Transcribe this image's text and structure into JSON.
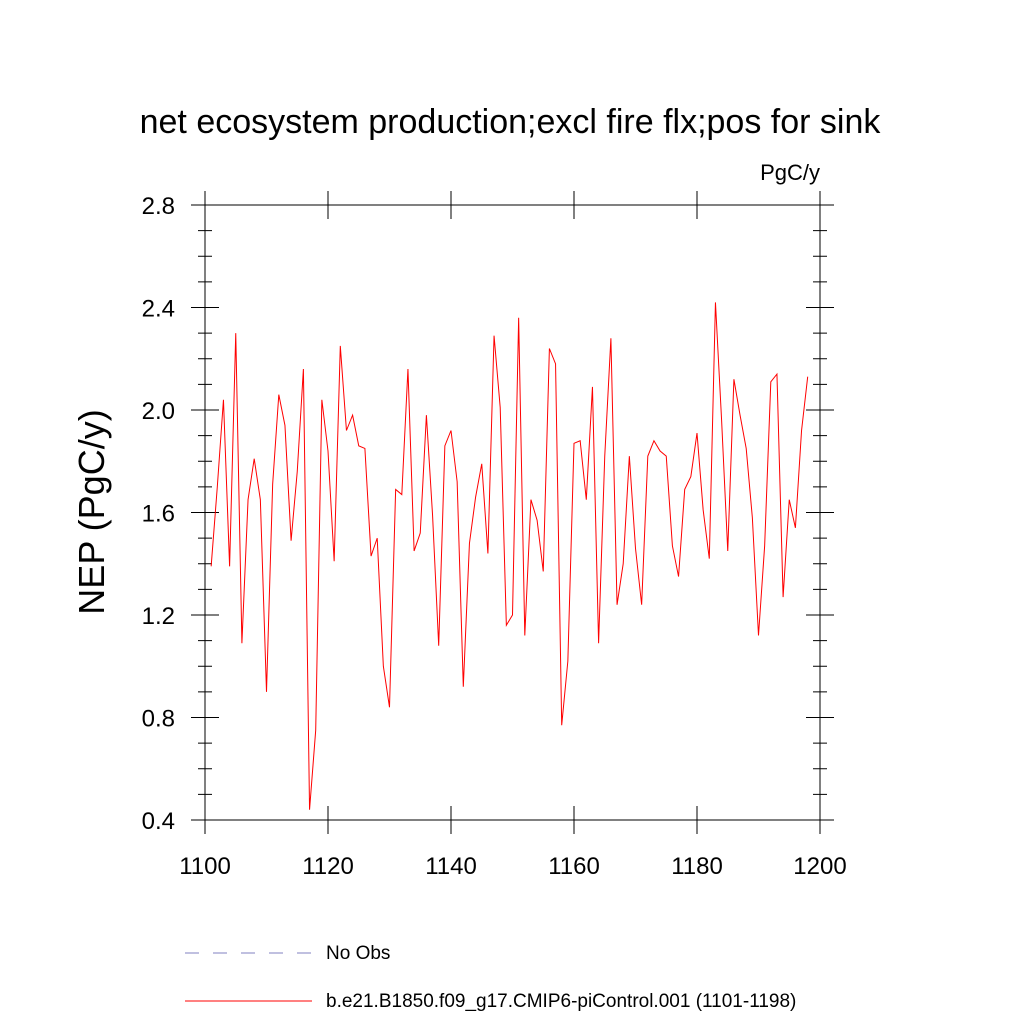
{
  "chart_data": {
    "type": "line",
    "title": "net ecosystem production;excl fire flx;pos for sink",
    "units": "PgC/y",
    "ylabel": "NEP  (PgC/y)",
    "xlabel": "",
    "xlim": [
      1100,
      1200
    ],
    "ylim": [
      0.4,
      2.8
    ],
    "x_ticks": [
      1100,
      1120,
      1140,
      1160,
      1180,
      1200
    ],
    "x_tick_labels": [
      "1100",
      "1120",
      "1140",
      "1160",
      "1180",
      "1200"
    ],
    "y_ticks": [
      0.4,
      0.8,
      1.2,
      1.6,
      2.0,
      2.4,
      2.8
    ],
    "y_tick_labels": [
      "0.4",
      "0.8",
      "1.2",
      "1.6",
      "2.0",
      "2.4",
      "2.8"
    ],
    "grid": false,
    "legend_position": "bottom",
    "series": [
      {
        "name": "b.e21.B1850.f09_g17.CMIP6-piControl.001 (1101-1198)",
        "color": "#ff0000",
        "dash": "solid",
        "x": [
          1101,
          1102,
          1103,
          1104,
          1105,
          1106,
          1107,
          1108,
          1109,
          1110,
          1111,
          1112,
          1113,
          1114,
          1115,
          1116,
          1117,
          1118,
          1119,
          1120,
          1121,
          1122,
          1123,
          1124,
          1125,
          1126,
          1127,
          1128,
          1129,
          1130,
          1131,
          1132,
          1133,
          1134,
          1135,
          1136,
          1137,
          1138,
          1139,
          1140,
          1141,
          1142,
          1143,
          1144,
          1145,
          1146,
          1147,
          1148,
          1149,
          1150,
          1151,
          1152,
          1153,
          1154,
          1155,
          1156,
          1157,
          1158,
          1159,
          1160,
          1161,
          1162,
          1163,
          1164,
          1165,
          1166,
          1167,
          1168,
          1169,
          1170,
          1171,
          1172,
          1173,
          1174,
          1175,
          1176,
          1177,
          1178,
          1179,
          1180,
          1181,
          1182,
          1183,
          1184,
          1185,
          1186,
          1187,
          1188,
          1189,
          1190,
          1191,
          1192,
          1193,
          1194,
          1195,
          1196,
          1197,
          1198
        ],
        "values": [
          1.39,
          1.7,
          2.04,
          1.39,
          2.3,
          1.09,
          1.65,
          1.81,
          1.65,
          0.9,
          1.71,
          2.06,
          1.94,
          1.49,
          1.76,
          2.16,
          0.44,
          0.75,
          2.04,
          1.84,
          1.41,
          2.25,
          1.92,
          1.98,
          1.86,
          1.85,
          1.43,
          1.5,
          1.0,
          0.84,
          1.69,
          1.67,
          2.16,
          1.45,
          1.52,
          1.98,
          1.59,
          1.08,
          1.86,
          1.92,
          1.72,
          0.92,
          1.48,
          1.66,
          1.79,
          1.44,
          2.29,
          2.01,
          1.16,
          1.2,
          2.36,
          1.12,
          1.65,
          1.57,
          1.37,
          2.24,
          2.18,
          0.77,
          1.02,
          1.87,
          1.88,
          1.65,
          2.09,
          1.09,
          1.82,
          2.28,
          1.24,
          1.4,
          1.82,
          1.46,
          1.24,
          1.82,
          1.88,
          1.84,
          1.82,
          1.47,
          1.35,
          1.69,
          1.74,
          1.91,
          1.61,
          1.42,
          2.42,
          1.96,
          1.45,
          2.12,
          1.98,
          1.85,
          1.58,
          1.12,
          1.47,
          2.11,
          2.14,
          1.27,
          1.65,
          1.54,
          1.92,
          2.13
        ]
      }
    ],
    "legend": [
      {
        "label": "No Obs",
        "color": "#8080c0",
        "dash": "dashed"
      },
      {
        "label": "b.e21.B1850.f09_g17.CMIP6-piControl.001 (1101-1198)",
        "color": "#ff0000",
        "dash": "solid"
      }
    ]
  }
}
